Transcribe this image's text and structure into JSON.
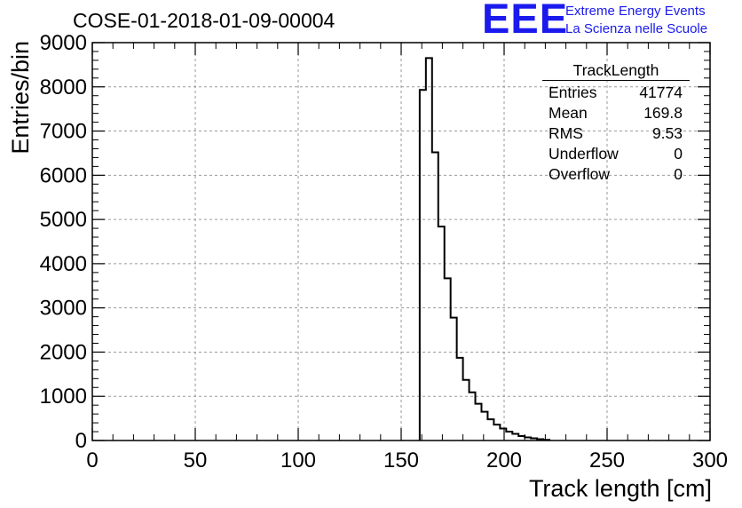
{
  "chart_data": {
    "type": "bar",
    "style": "step-histogram",
    "title": "COSE-01-2018-01-09-00004",
    "xlabel": "Track length [cm]",
    "ylabel": "Entries/bin",
    "xlim": [
      0,
      300
    ],
    "ylim": [
      0,
      9000
    ],
    "grid": true,
    "xticks": [
      "0",
      "50",
      "100",
      "150",
      "200",
      "250",
      "300"
    ],
    "yticks": [
      "0",
      "1000",
      "2000",
      "3000",
      "4000",
      "5000",
      "6000",
      "7000",
      "8000",
      "9000"
    ],
    "bin_width": 3,
    "bin_edges_start": 159,
    "values": [
      7930,
      8650,
      6520,
      4840,
      3670,
      2780,
      1870,
      1370,
      1090,
      830,
      650,
      480,
      360,
      270,
      200,
      150,
      100,
      70,
      50,
      30,
      15
    ],
    "stats_box": {
      "title": "TrackLength",
      "position": "top-right",
      "rows": [
        {
          "label": "Entries",
          "value": "41774"
        },
        {
          "label": "Mean",
          "value": "169.8"
        },
        {
          "label": "RMS",
          "value": "9.53"
        },
        {
          "label": "Underflow",
          "value": "0"
        },
        {
          "label": "Overflow",
          "value": "0"
        }
      ]
    }
  },
  "logo": {
    "mark": "EEE",
    "line1": "Extreme Energy Events",
    "line2": "La Scienza nelle Scuole"
  },
  "colors": {
    "logo": "#1a1aee",
    "grid": "#9a9a9a",
    "line": "#000000"
  }
}
